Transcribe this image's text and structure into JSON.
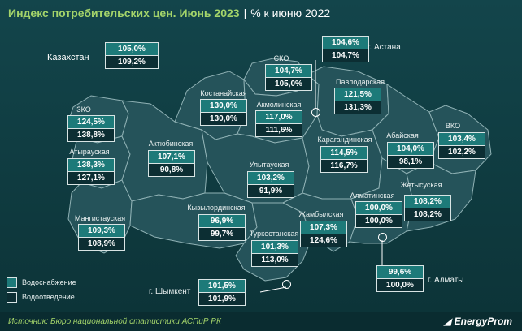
{
  "title": {
    "main": "Индекс потребительских цен. Июнь 2023",
    "separator": "|",
    "sub": "% к июню 2022"
  },
  "colors": {
    "water_supply": "#1d7a79",
    "water_disposal": "#0c2e33",
    "title_accent": "#a4d46a",
    "region_fill": "#25535a"
  },
  "legend": {
    "water_supply": "Водоснабжение",
    "water_disposal": "Водоотведение"
  },
  "kazakhstan": {
    "label": "Казахстан",
    "supply": "105,0%",
    "disposal": "109,2%"
  },
  "regions": {
    "zko": {
      "name": "ЗКО",
      "supply": "124,5%",
      "disposal": "138,8%"
    },
    "atyrau": {
      "name": "Атырауская",
      "supply": "138,3%",
      "disposal": "127,1%"
    },
    "mangistau": {
      "name": "Мангистауская",
      "supply": "109,3%",
      "disposal": "108,9%"
    },
    "aktobe": {
      "name": "Актюбинская",
      "supply": "107,1%",
      "disposal": "90,8%"
    },
    "kostanay": {
      "name": "Костанайская",
      "supply": "130,0%",
      "disposal": "130,0%"
    },
    "sko": {
      "name": "СКО",
      "supply": "104,7%",
      "disposal": "105,0%"
    },
    "akmola": {
      "name": "Акмолинская",
      "supply": "117,0%",
      "disposal": "111,6%"
    },
    "pavlodar": {
      "name": "Павлодарская",
      "supply": "121,5%",
      "disposal": "131,3%"
    },
    "astana": {
      "name": "г. Астана",
      "supply": "104,6%",
      "disposal": "104,7%"
    },
    "karaganda": {
      "name": "Карагандинская",
      "supply": "114,5%",
      "disposal": "116,7%"
    },
    "abay": {
      "name": "Абайская",
      "supply": "104,0%",
      "disposal": "98,1%"
    },
    "vko": {
      "name": "ВКО",
      "supply": "103,4%",
      "disposal": "102,2%"
    },
    "ulytau": {
      "name": "Улытауская",
      "supply": "103,2%",
      "disposal": "91,9%"
    },
    "kyzylorda": {
      "name": "Кызылординская",
      "supply": "96,9%",
      "disposal": "99,7%"
    },
    "turkestan": {
      "name": "Туркестанская",
      "supply": "101,3%",
      "disposal": "113,0%"
    },
    "zhambyl": {
      "name": "Жамбылская",
      "supply": "107,3%",
      "disposal": "124,6%"
    },
    "almaty_reg": {
      "name": "Алматинская",
      "supply": "100,0%",
      "disposal": "100,0%"
    },
    "zhetysu": {
      "name": "Жетысуская",
      "supply": "108,2%",
      "disposal": "108,2%"
    },
    "almaty_city": {
      "name": "г. Алматы",
      "supply": "99,6%",
      "disposal": "100,0%"
    },
    "shymkent": {
      "name": "г. Шымкент",
      "supply": "101,5%",
      "disposal": "101,9%"
    }
  },
  "footer": {
    "source": "Источник: Бюро национальной статистики АСПиР РК",
    "brand": "EnergyProm",
    "logo_icon": "energyprom-logo-icon"
  }
}
